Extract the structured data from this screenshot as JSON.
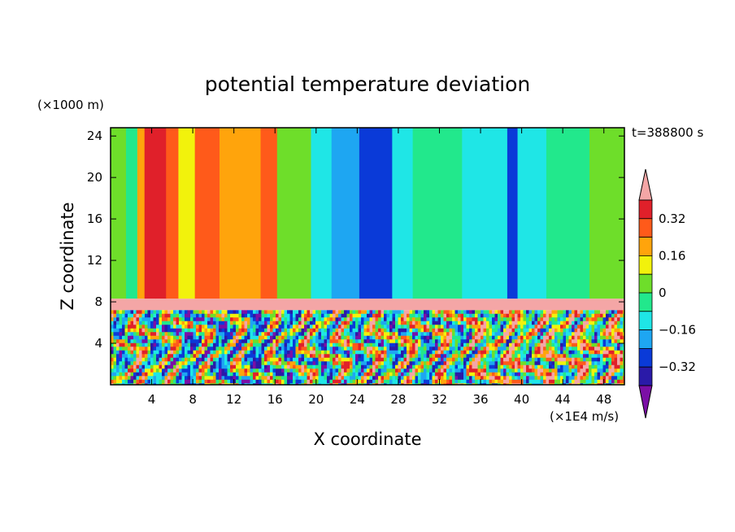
{
  "chart_data": {
    "type": "heatmap",
    "title": "potential temperature deviation",
    "xlabel": "X coordinate",
    "ylabel": "Z coordinate",
    "x_unit": "(×1E4 m/s)",
    "y_unit": "(×1000 m)",
    "time_label": "t=388800 s",
    "xlim": [
      0,
      50
    ],
    "ylim": [
      0,
      24.8
    ],
    "x_ticks": [
      4,
      8,
      12,
      16,
      20,
      24,
      28,
      32,
      36,
      40,
      44,
      48
    ],
    "y_ticks": [
      4,
      8,
      12,
      16,
      20,
      24
    ],
    "grid": false,
    "colorbar": {
      "levels": [
        -0.4,
        -0.32,
        -0.24,
        -0.16,
        -0.08,
        0,
        0.08,
        0.16,
        0.24,
        0.32,
        0.4
      ],
      "tick_labels": [
        "0.32",
        "0.16",
        "0",
        "−0.16",
        "−0.32"
      ],
      "tick_values": [
        0.32,
        0.16,
        0,
        -0.16,
        -0.32
      ],
      "colors": [
        "#7b0fa6",
        "#2a1aa8",
        "#0a3ad8",
        "#1ea6f2",
        "#1fe6e6",
        "#22e88c",
        "#6ede2a",
        "#f2f20c",
        "#ffa40c",
        "#ff5a1a",
        "#e0202a",
        "#f4a6a6"
      ],
      "extend": "both"
    },
    "upper_layer_columns": [
      {
        "x": [
          0,
          1.5
        ],
        "value": 0.02
      },
      {
        "x": [
          1.5,
          2.6
        ],
        "value": -0.06
      },
      {
        "x": [
          2.6,
          3.3
        ],
        "value": 0.22
      },
      {
        "x": [
          3.3,
          4.4
        ],
        "value": 0.34
      },
      {
        "x": [
          4.4,
          5.4
        ],
        "value": 0.38
      },
      {
        "x": [
          5.4,
          6.6
        ],
        "value": 0.3
      },
      {
        "x": [
          6.6,
          8.2
        ],
        "value": 0.14
      },
      {
        "x": [
          8.2,
          10.6
        ],
        "value": 0.26
      },
      {
        "x": [
          10.6,
          14.6
        ],
        "value": 0.2
      },
      {
        "x": [
          14.6,
          16.2
        ],
        "value": 0.25
      },
      {
        "x": [
          16.2,
          19.5
        ],
        "value": 0.02
      },
      {
        "x": [
          19.5,
          21.5
        ],
        "value": -0.13
      },
      {
        "x": [
          21.5,
          24.2
        ],
        "value": -0.22
      },
      {
        "x": [
          24.2,
          27.4
        ],
        "value": -0.3
      },
      {
        "x": [
          27.4,
          29.4
        ],
        "value": -0.12
      },
      {
        "x": [
          29.4,
          34.2
        ],
        "value": -0.02
      },
      {
        "x": [
          34.2,
          38.6
        ],
        "value": -0.12
      },
      {
        "x": [
          38.6,
          39.6
        ],
        "value": -0.32
      },
      {
        "x": [
          39.6,
          42.4
        ],
        "value": -0.12
      },
      {
        "x": [
          42.4,
          46.6
        ],
        "value": -0.03
      },
      {
        "x": [
          46.6,
          50
        ],
        "value": 0.05
      }
    ],
    "layers": [
      {
        "z": [
          8.3,
          24.8
        ],
        "description": "upper layer, smooth vertical columns"
      },
      {
        "z": [
          7.2,
          8.3
        ],
        "value": 0.42
      },
      {
        "z": [
          0,
          7.2
        ],
        "description": "lower layer, turbulent mixed values"
      }
    ]
  }
}
